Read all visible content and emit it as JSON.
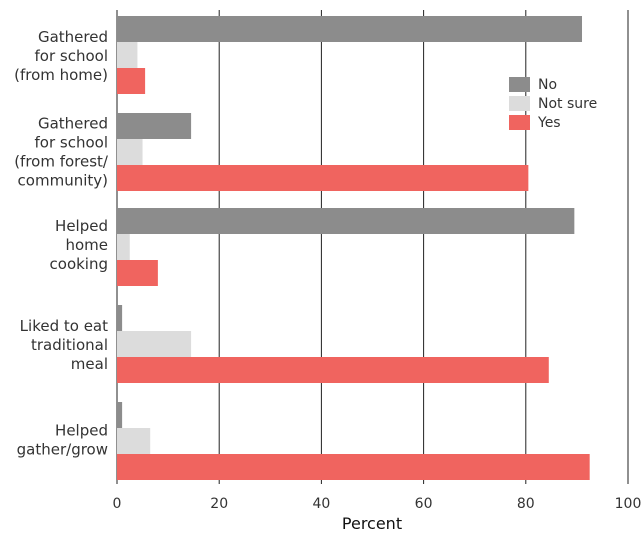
{
  "chart_data": {
    "type": "bar",
    "orientation": "horizontal",
    "title": "",
    "xlabel": "Percent",
    "ylabel": "",
    "xlim": [
      0,
      100
    ],
    "xticks": [
      0,
      20,
      40,
      60,
      80,
      100
    ],
    "grid": "vertical",
    "legend": "top-right",
    "categories": [
      [
        "Gathered",
        "for school",
        "(from home)"
      ],
      [
        "Gathered",
        "for school",
        "(from forest/",
        "community)"
      ],
      [
        "Helped",
        "home",
        "cooking"
      ],
      [
        "Liked to eat",
        "traditional",
        "meal"
      ],
      [
        "Helped",
        "gather/grow"
      ]
    ],
    "series": [
      {
        "name": "No",
        "color": "#8c8c8c",
        "values": [
          91,
          14.5,
          89.5,
          1,
          1
        ]
      },
      {
        "name": "Not sure",
        "color": "#dcdcdc",
        "values": [
          4,
          5,
          2.5,
          14.5,
          6.5
        ]
      },
      {
        "name": "Yes",
        "color": "#f0645f",
        "values": [
          5.5,
          80.5,
          8,
          84.5,
          92.5
        ]
      }
    ]
  }
}
